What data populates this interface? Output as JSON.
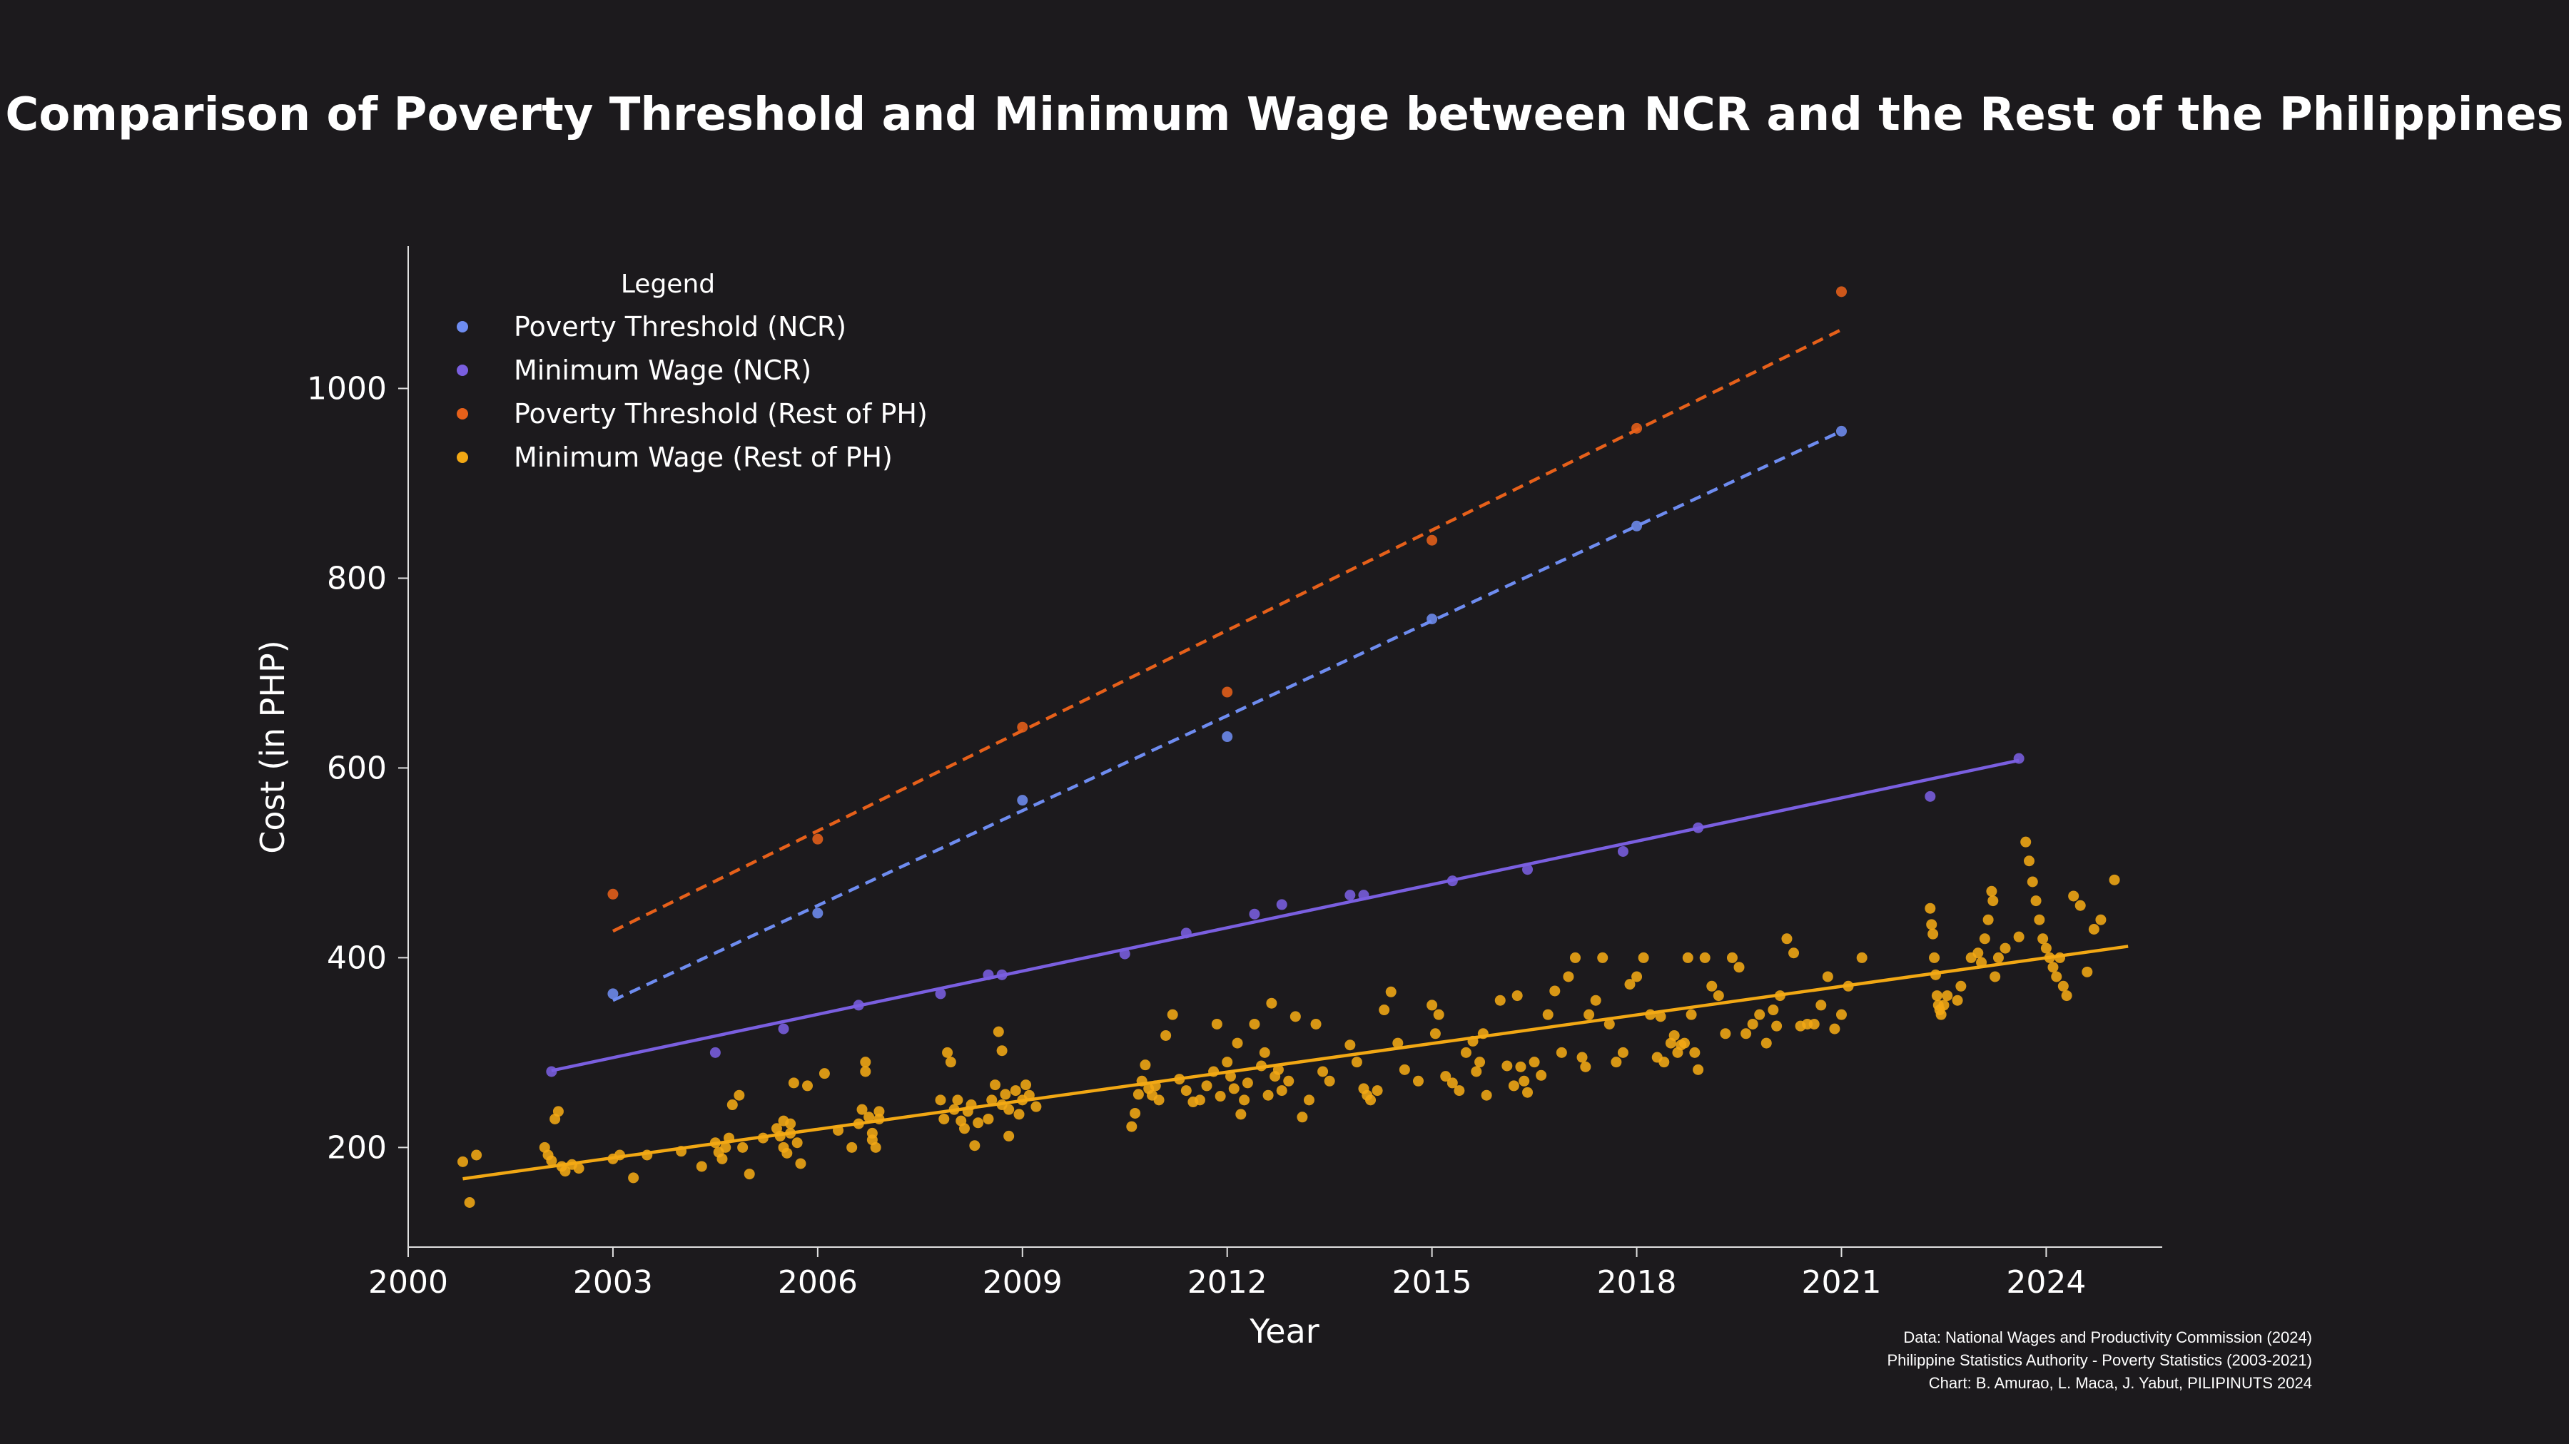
{
  "chart_data": {
    "type": "scatter",
    "title": "Comparison of Poverty Threshold and Minimum Wage between NCR and the Rest of the Philippines",
    "xlabel": "Year",
    "ylabel": "Cost (in PHP)",
    "xlim": [
      2000,
      2025.7
    ],
    "ylim": [
      95,
      1150
    ],
    "x_ticks": [
      2000,
      2003,
      2006,
      2009,
      2012,
      2015,
      2018,
      2021,
      2024
    ],
    "y_ticks": [
      200,
      400,
      600,
      800,
      1000
    ],
    "legend": {
      "title": "Legend",
      "position": "top-left"
    },
    "series": [
      {
        "name": "Poverty Threshold (NCR)",
        "color": "#6e8cf0",
        "points": [
          [
            2003.0,
            362
          ],
          [
            2006.0,
            447
          ],
          [
            2009.0,
            566
          ],
          [
            2012.0,
            633
          ],
          [
            2015.0,
            757
          ],
          [
            2018.0,
            855
          ],
          [
            2021.0,
            955
          ]
        ],
        "trend": {
          "style": "dashed",
          "from": [
            2003.0,
            355
          ],
          "to": [
            2021.0,
            955
          ]
        }
      },
      {
        "name": "Minimum Wage (NCR)",
        "color": "#7a5fe0",
        "points": [
          [
            2002.1,
            280
          ],
          [
            2004.5,
            300
          ],
          [
            2005.5,
            325
          ],
          [
            2006.6,
            350
          ],
          [
            2007.8,
            362
          ],
          [
            2008.5,
            382
          ],
          [
            2008.7,
            382
          ],
          [
            2010.5,
            404
          ],
          [
            2011.4,
            426
          ],
          [
            2012.4,
            446
          ],
          [
            2012.8,
            456
          ],
          [
            2013.8,
            466
          ],
          [
            2014.0,
            466
          ],
          [
            2015.3,
            481
          ],
          [
            2016.4,
            493
          ],
          [
            2017.8,
            512
          ],
          [
            2018.9,
            537
          ],
          [
            2022.3,
            570
          ],
          [
            2023.6,
            610
          ]
        ],
        "trend": {
          "style": "solid",
          "from": [
            2002.1,
            281
          ],
          "to": [
            2023.6,
            608
          ]
        }
      },
      {
        "name": "Poverty Threshold (Rest of PH)",
        "color": "#e6601a",
        "points": [
          [
            2003.0,
            467
          ],
          [
            2006.0,
            525
          ],
          [
            2009.0,
            643
          ],
          [
            2012.0,
            680
          ],
          [
            2015.0,
            840
          ],
          [
            2018.0,
            958
          ],
          [
            2021.0,
            1102
          ]
        ],
        "trend": {
          "style": "dashed",
          "from": [
            2003.0,
            428
          ],
          "to": [
            2021.0,
            1062
          ]
        }
      },
      {
        "name": "Minimum Wage (Rest of PH)",
        "color": "#f2a814",
        "trend": {
          "style": "solid",
          "from": [
            2000.8,
            167
          ],
          "to": [
            2025.2,
            412
          ]
        },
        "points": [
          [
            2000.8,
            185
          ],
          [
            2000.9,
            142
          ],
          [
            2001.0,
            192
          ],
          [
            2002.0,
            200
          ],
          [
            2002.05,
            192
          ],
          [
            2002.1,
            186
          ],
          [
            2002.15,
            230
          ],
          [
            2002.2,
            238
          ],
          [
            2002.25,
            180
          ],
          [
            2002.3,
            175
          ],
          [
            2002.4,
            182
          ],
          [
            2002.5,
            178
          ],
          [
            2003.0,
            188
          ],
          [
            2003.1,
            192
          ],
          [
            2003.3,
            168
          ],
          [
            2003.5,
            192
          ],
          [
            2004.0,
            196
          ],
          [
            2004.3,
            180
          ],
          [
            2004.5,
            205
          ],
          [
            2004.55,
            195
          ],
          [
            2004.6,
            188
          ],
          [
            2004.65,
            200
          ],
          [
            2004.7,
            210
          ],
          [
            2004.75,
            245
          ],
          [
            2004.85,
            255
          ],
          [
            2004.9,
            200
          ],
          [
            2005.0,
            172
          ],
          [
            2005.2,
            210
          ],
          [
            2005.4,
            220
          ],
          [
            2005.45,
            212
          ],
          [
            2005.5,
            200
          ],
          [
            2005.5,
            228
          ],
          [
            2005.55,
            194
          ],
          [
            2005.6,
            215
          ],
          [
            2005.6,
            225
          ],
          [
            2005.65,
            268
          ],
          [
            2005.7,
            205
          ],
          [
            2005.75,
            183
          ],
          [
            2005.85,
            265
          ],
          [
            2006.1,
            278
          ],
          [
            2006.3,
            218
          ],
          [
            2006.5,
            200
          ],
          [
            2006.6,
            225
          ],
          [
            2006.65,
            240
          ],
          [
            2006.7,
            280
          ],
          [
            2006.7,
            290
          ],
          [
            2006.75,
            232
          ],
          [
            2006.8,
            215
          ],
          [
            2006.8,
            208
          ],
          [
            2006.85,
            200
          ],
          [
            2006.9,
            230
          ],
          [
            2006.9,
            238
          ],
          [
            2007.8,
            250
          ],
          [
            2007.85,
            230
          ],
          [
            2007.9,
            300
          ],
          [
            2007.95,
            290
          ],
          [
            2008.0,
            240
          ],
          [
            2008.05,
            250
          ],
          [
            2008.1,
            228
          ],
          [
            2008.15,
            220
          ],
          [
            2008.2,
            238
          ],
          [
            2008.25,
            245
          ],
          [
            2008.3,
            202
          ],
          [
            2008.35,
            226
          ],
          [
            2008.5,
            230
          ],
          [
            2008.55,
            250
          ],
          [
            2008.6,
            266
          ],
          [
            2008.65,
            322
          ],
          [
            2008.7,
            302
          ],
          [
            2008.7,
            245
          ],
          [
            2008.75,
            256
          ],
          [
            2008.8,
            240
          ],
          [
            2008.8,
            212
          ],
          [
            2008.9,
            260
          ],
          [
            2008.95,
            235
          ],
          [
            2009.0,
            250
          ],
          [
            2009.05,
            266
          ],
          [
            2009.1,
            255
          ],
          [
            2009.2,
            243
          ],
          [
            2010.6,
            222
          ],
          [
            2010.65,
            236
          ],
          [
            2010.7,
            256
          ],
          [
            2010.75,
            270
          ],
          [
            2010.8,
            287
          ],
          [
            2010.85,
            262
          ],
          [
            2010.9,
            255
          ],
          [
            2010.95,
            265
          ],
          [
            2011.0,
            250
          ],
          [
            2011.1,
            318
          ],
          [
            2011.2,
            340
          ],
          [
            2011.3,
            272
          ],
          [
            2011.4,
            260
          ],
          [
            2011.5,
            248
          ],
          [
            2011.6,
            250
          ],
          [
            2011.7,
            265
          ],
          [
            2011.8,
            280
          ],
          [
            2011.85,
            330
          ],
          [
            2011.9,
            254
          ],
          [
            2012.0,
            290
          ],
          [
            2012.05,
            275
          ],
          [
            2012.1,
            262
          ],
          [
            2012.15,
            310
          ],
          [
            2012.2,
            235
          ],
          [
            2012.25,
            250
          ],
          [
            2012.3,
            268
          ],
          [
            2012.4,
            330
          ],
          [
            2012.5,
            286
          ],
          [
            2012.55,
            300
          ],
          [
            2012.6,
            255
          ],
          [
            2012.65,
            352
          ],
          [
            2012.7,
            275
          ],
          [
            2012.75,
            282
          ],
          [
            2012.8,
            260
          ],
          [
            2012.9,
            270
          ],
          [
            2013.0,
            338
          ],
          [
            2013.1,
            232
          ],
          [
            2013.2,
            250
          ],
          [
            2013.3,
            330
          ],
          [
            2013.4,
            280
          ],
          [
            2013.5,
            270
          ],
          [
            2013.8,
            308
          ],
          [
            2013.9,
            290
          ],
          [
            2014.0,
            262
          ],
          [
            2014.05,
            255
          ],
          [
            2014.1,
            250
          ],
          [
            2014.2,
            260
          ],
          [
            2014.3,
            345
          ],
          [
            2014.4,
            364
          ],
          [
            2014.5,
            310
          ],
          [
            2014.6,
            282
          ],
          [
            2014.8,
            270
          ],
          [
            2015.0,
            350
          ],
          [
            2015.05,
            320
          ],
          [
            2015.1,
            340
          ],
          [
            2015.2,
            275
          ],
          [
            2015.3,
            268
          ],
          [
            2015.4,
            260
          ],
          [
            2015.5,
            300
          ],
          [
            2015.6,
            312
          ],
          [
            2015.65,
            280
          ],
          [
            2015.7,
            290
          ],
          [
            2015.75,
            320
          ],
          [
            2015.8,
            255
          ],
          [
            2016.0,
            355
          ],
          [
            2016.1,
            286
          ],
          [
            2016.2,
            265
          ],
          [
            2016.25,
            360
          ],
          [
            2016.3,
            285
          ],
          [
            2016.35,
            270
          ],
          [
            2016.4,
            258
          ],
          [
            2016.5,
            290
          ],
          [
            2016.6,
            276
          ],
          [
            2016.7,
            340
          ],
          [
            2016.8,
            365
          ],
          [
            2016.9,
            300
          ],
          [
            2017.0,
            380
          ],
          [
            2017.1,
            400
          ],
          [
            2017.2,
            295
          ],
          [
            2017.25,
            285
          ],
          [
            2017.3,
            340
          ],
          [
            2017.4,
            355
          ],
          [
            2017.5,
            400
          ],
          [
            2017.6,
            330
          ],
          [
            2017.7,
            290
          ],
          [
            2017.8,
            300
          ],
          [
            2017.9,
            372
          ],
          [
            2018.0,
            380
          ],
          [
            2018.1,
            400
          ],
          [
            2018.2,
            340
          ],
          [
            2018.3,
            295
          ],
          [
            2018.35,
            338
          ],
          [
            2018.4,
            290
          ],
          [
            2018.5,
            310
          ],
          [
            2018.55,
            318
          ],
          [
            2018.6,
            300
          ],
          [
            2018.65,
            308
          ],
          [
            2018.7,
            310
          ],
          [
            2018.75,
            400
          ],
          [
            2018.8,
            340
          ],
          [
            2018.85,
            300
          ],
          [
            2018.9,
            282
          ],
          [
            2019.0,
            400
          ],
          [
            2019.1,
            370
          ],
          [
            2019.2,
            360
          ],
          [
            2019.3,
            320
          ],
          [
            2019.4,
            400
          ],
          [
            2019.5,
            390
          ],
          [
            2019.6,
            320
          ],
          [
            2019.7,
            330
          ],
          [
            2019.8,
            340
          ],
          [
            2019.9,
            310
          ],
          [
            2020.0,
            345
          ],
          [
            2020.05,
            328
          ],
          [
            2020.1,
            360
          ],
          [
            2020.2,
            420
          ],
          [
            2020.3,
            405
          ],
          [
            2020.4,
            328
          ],
          [
            2020.5,
            330
          ],
          [
            2020.6,
            330
          ],
          [
            2020.7,
            350
          ],
          [
            2020.8,
            380
          ],
          [
            2020.9,
            325
          ],
          [
            2021.0,
            340
          ],
          [
            2021.1,
            370
          ],
          [
            2021.3,
            400
          ],
          [
            2022.3,
            452
          ],
          [
            2022.32,
            435
          ],
          [
            2022.34,
            425
          ],
          [
            2022.36,
            400
          ],
          [
            2022.38,
            382
          ],
          [
            2022.4,
            360
          ],
          [
            2022.42,
            350
          ],
          [
            2022.44,
            345
          ],
          [
            2022.46,
            340
          ],
          [
            2022.5,
            350
          ],
          [
            2022.55,
            360
          ],
          [
            2022.7,
            355
          ],
          [
            2022.75,
            370
          ],
          [
            2022.9,
            400
          ],
          [
            2023.0,
            405
          ],
          [
            2023.05,
            395
          ],
          [
            2023.1,
            420
          ],
          [
            2023.15,
            440
          ],
          [
            2023.2,
            470
          ],
          [
            2023.22,
            460
          ],
          [
            2023.25,
            380
          ],
          [
            2023.3,
            400
          ],
          [
            2023.4,
            410
          ],
          [
            2023.6,
            422
          ],
          [
            2023.7,
            522
          ],
          [
            2023.75,
            502
          ],
          [
            2023.8,
            480
          ],
          [
            2023.85,
            460
          ],
          [
            2023.9,
            440
          ],
          [
            2023.95,
            420
          ],
          [
            2024.0,
            410
          ],
          [
            2024.05,
            400
          ],
          [
            2024.1,
            390
          ],
          [
            2024.15,
            380
          ],
          [
            2024.2,
            400
          ],
          [
            2024.25,
            370
          ],
          [
            2024.3,
            360
          ],
          [
            2024.4,
            465
          ],
          [
            2024.5,
            455
          ],
          [
            2024.6,
            385
          ],
          [
            2024.7,
            430
          ],
          [
            2024.8,
            440
          ],
          [
            2025.0,
            482
          ]
        ]
      }
    ]
  },
  "credits": [
    "Data: National Wages and Productivity Commission (2024)",
    "Philippine Statistics Authority - Poverty Statistics (2003-2021)",
    "Chart: B. Amurao, L. Maca, J. Yabut,  PILIPINUTS 2024"
  ]
}
